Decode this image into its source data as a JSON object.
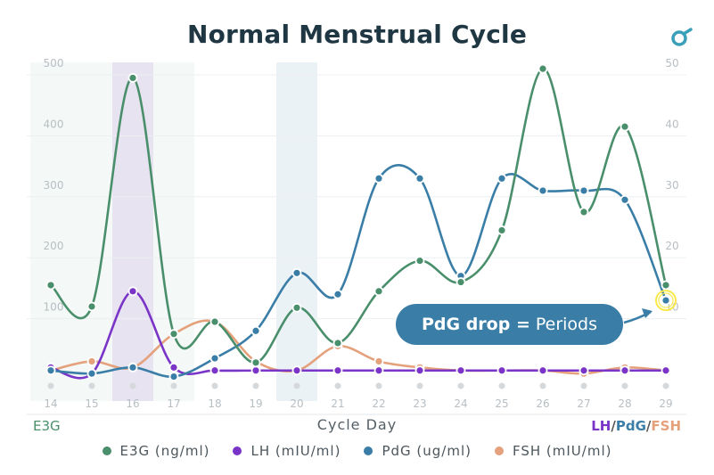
{
  "title": "Normal Menstrual Cycle",
  "callout": {
    "bold": "PdG drop =",
    "text": "Periods"
  },
  "axis_names": {
    "left": "E3G",
    "right_lh": "LH",
    "right_pdg": "PdG",
    "right_fsh": "FSH",
    "sep": "/"
  },
  "colors": {
    "e3g": "#4a8f6b",
    "lh": "#7a35c8",
    "pdg": "#3a7ea7",
    "fsh": "#e4a17b",
    "accent": "#fbe94a"
  },
  "logo_icon": "brand-logo-icon",
  "chart_data": {
    "type": "line",
    "title": "Normal Menstrual Cycle",
    "xlabel": "Cycle Day",
    "ylabel_left": "E3G",
    "ylabel_right": "LH/PdG/FSH",
    "x": [
      14,
      15,
      16,
      17,
      18,
      19,
      20,
      21,
      22,
      23,
      24,
      25,
      26,
      27,
      28,
      29
    ],
    "ylim_left": [
      0,
      500
    ],
    "yticks_left": [
      100,
      200,
      300,
      400,
      500
    ],
    "ylim_right": [
      0,
      50
    ],
    "yticks_right": [
      10,
      20,
      30,
      40,
      50
    ],
    "grid": true,
    "legend_position": "bottom",
    "highlight_days": [
      {
        "day": 16,
        "color": "lh"
      },
      {
        "day": 20,
        "color": "pdg"
      }
    ],
    "series": [
      {
        "name": "E3G (ng/ml)",
        "key": "e3g",
        "axis": "left",
        "values": [
          155,
          120,
          495,
          75,
          95,
          28,
          118,
          60,
          145,
          195,
          160,
          245,
          510,
          275,
          415,
          155
        ]
      },
      {
        "name": "LH (mIU/ml)",
        "key": "lh",
        "axis": "right",
        "values": [
          2,
          1,
          14.5,
          2,
          1.5,
          1.5,
          1.5,
          1.5,
          1.5,
          1.5,
          1.5,
          1.5,
          1.5,
          1.5,
          1.5,
          1.5
        ]
      },
      {
        "name": "PdG (ug/ml)",
        "key": "pdg",
        "axis": "right",
        "values": [
          1.5,
          1,
          2,
          0.5,
          3.5,
          8,
          17.5,
          14,
          33,
          33,
          17,
          33,
          31,
          31,
          29.5,
          13
        ]
      },
      {
        "name": "FSH (mIU/ml)",
        "key": "fsh",
        "axis": "right",
        "values": [
          1.5,
          3,
          2,
          7.5,
          9.5,
          3,
          1.5,
          5.5,
          3,
          2,
          1.5,
          1.5,
          1.5,
          1,
          2,
          1.5
        ]
      }
    ]
  }
}
